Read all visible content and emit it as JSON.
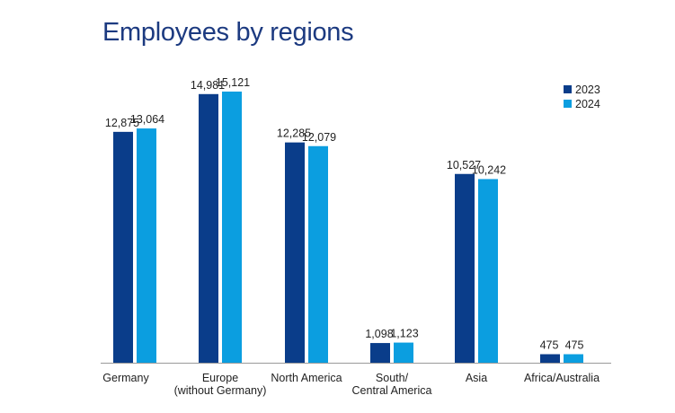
{
  "chart_data": {
    "type": "bar",
    "title": "Employees by regions",
    "categories": [
      [
        "Germany"
      ],
      [
        "Europe",
        "(without Germany)"
      ],
      [
        "North America"
      ],
      [
        "South/",
        "Central America"
      ],
      [
        "Asia"
      ],
      [
        "Africa/Australia"
      ]
    ],
    "series": [
      {
        "name": "2023",
        "color": "#0a3d8a",
        "values": [
          12875,
          14981,
          12285,
          1098,
          10527,
          475
        ],
        "labels": [
          "12,875",
          "14,981",
          "12,285",
          "1,098",
          "10,527",
          "475"
        ]
      },
      {
        "name": "2024",
        "color": "#0b9ee0",
        "values": [
          13064,
          15121,
          12079,
          1123,
          10242,
          475
        ],
        "labels": [
          "13,064",
          "15,121",
          "12,079",
          "1,123",
          "10,242",
          "475"
        ]
      }
    ],
    "ylim": [
      0,
      17500
    ],
    "grid": false,
    "legend": "top-right",
    "xlabel": "",
    "ylabel": ""
  }
}
